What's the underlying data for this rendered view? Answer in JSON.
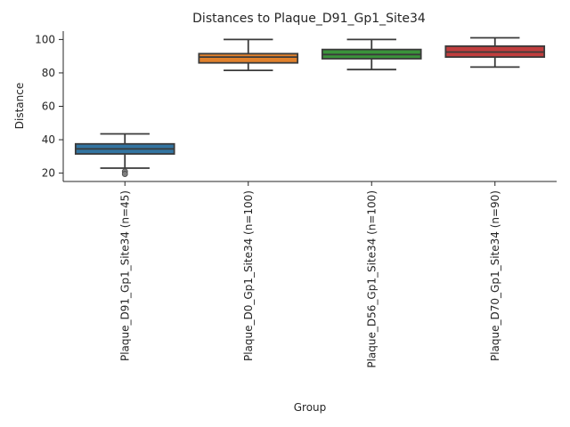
{
  "chart_data": {
    "type": "box",
    "title": "Distances to Plaque_D91_Gp1_Site34",
    "xlabel": "Group",
    "ylabel": "Distance",
    "ylim": [
      15,
      105
    ],
    "yticks": [
      20,
      40,
      60,
      80,
      100
    ],
    "grid": false,
    "legend": "none",
    "categories": [
      "Plaque_D91_Gp1_Site34 (n=45)",
      "Plaque_D0_Gp1_Site34 (n=100)",
      "Plaque_D56_Gp1_Site34 (n=100)",
      "Plaque_D70_Gp1_Site34 (n=90)"
    ],
    "boxes": [
      {
        "whislo": 23,
        "q1": 31.5,
        "med": 34.5,
        "q3": 37.5,
        "whishi": 43.5,
        "fliers": [
          21,
          19.5
        ],
        "color": "#3274a1"
      },
      {
        "whislo": 81.5,
        "q1": 86,
        "med": 89.5,
        "q3": 91.5,
        "whishi": 100,
        "fliers": [],
        "color": "#e1812c"
      },
      {
        "whislo": 82,
        "q1": 88.5,
        "med": 91,
        "q3": 94,
        "whishi": 100,
        "fliers": [],
        "color": "#3a923a"
      },
      {
        "whislo": 83.5,
        "q1": 89.5,
        "med": 92.5,
        "q3": 96,
        "whishi": 101,
        "fliers": [],
        "color": "#c03d3e"
      }
    ]
  }
}
